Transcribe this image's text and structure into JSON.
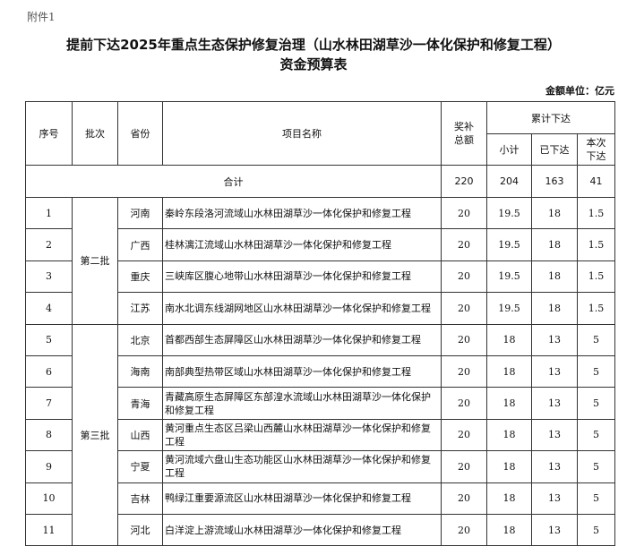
{
  "attachment_label": "附件1",
  "title_line1": "提前下达2025年重点生态保护修复治理（山水林田湖草沙一体化保护和修复工程）",
  "title_line2": "资金预算表",
  "unit": "金额单位：亿元",
  "headers": {
    "seq": "序号",
    "batch": "批次",
    "province": "省份",
    "project": "项目名称",
    "total": "奖补总额",
    "cumulative": "累计下达",
    "subtotal": "小计",
    "issued": "已下达",
    "current": "本次下达"
  },
  "total_row": {
    "label": "合计",
    "total": "220",
    "subtotal": "204",
    "issued": "163",
    "current": "41"
  },
  "batches": [
    "第二批",
    "第三批"
  ],
  "rows": [
    {
      "seq": "1",
      "province": "河南",
      "project": "秦岭东段洛河流域山水林田湖草沙一体化保护和修复工程",
      "total": "20",
      "subtotal": "19.5",
      "issued": "18",
      "current": "1.5"
    },
    {
      "seq": "2",
      "province": "广西",
      "project": "桂林漓江流域山水林田湖草沙一体化保护和修复工程",
      "total": "20",
      "subtotal": "19.5",
      "issued": "18",
      "current": "1.5"
    },
    {
      "seq": "3",
      "province": "重庆",
      "project": "三峡库区腹心地带山水林田湖草沙一体化保护和修复工程",
      "total": "20",
      "subtotal": "19.5",
      "issued": "18",
      "current": "1.5"
    },
    {
      "seq": "4",
      "province": "江苏",
      "project": "南水北调东线湖网地区山水林田湖草沙一体化保护和修复工程",
      "total": "20",
      "subtotal": "19.5",
      "issued": "18",
      "current": "1.5"
    },
    {
      "seq": "5",
      "province": "北京",
      "project": "首都西部生态屏障区山水林田湖草沙一体化保护和修复工程",
      "total": "20",
      "subtotal": "18",
      "issued": "13",
      "current": "5"
    },
    {
      "seq": "6",
      "province": "海南",
      "project": "南部典型热带区域山水林田湖草沙一体化保护和修复工程",
      "total": "20",
      "subtotal": "18",
      "issued": "13",
      "current": "5"
    },
    {
      "seq": "7",
      "province": "青海",
      "project": "青藏高原生态屏障区东部湟水流域山水林田湖草沙一体化保护和修复工程",
      "total": "20",
      "subtotal": "18",
      "issued": "13",
      "current": "5"
    },
    {
      "seq": "8",
      "province": "山西",
      "project": "黄河重点生态区吕梁山西麓山水林田湖草沙一体化保护和修复工程",
      "total": "20",
      "subtotal": "18",
      "issued": "13",
      "current": "5"
    },
    {
      "seq": "9",
      "province": "宁夏",
      "project": "黄河流域六盘山生态功能区山水林田湖草沙一体化保护和修复工程",
      "total": "20",
      "subtotal": "18",
      "issued": "13",
      "current": "5"
    },
    {
      "seq": "10",
      "province": "吉林",
      "project": "鸭绿江重要源流区山水林田湖草沙一体化保护和修复工程",
      "total": "20",
      "subtotal": "18",
      "issued": "13",
      "current": "5"
    },
    {
      "seq": "11",
      "province": "河北",
      "project": "白洋淀上游流域山水林田湖草沙一体化保护和修复工程",
      "total": "20",
      "subtotal": "18",
      "issued": "13",
      "current": "5"
    }
  ]
}
